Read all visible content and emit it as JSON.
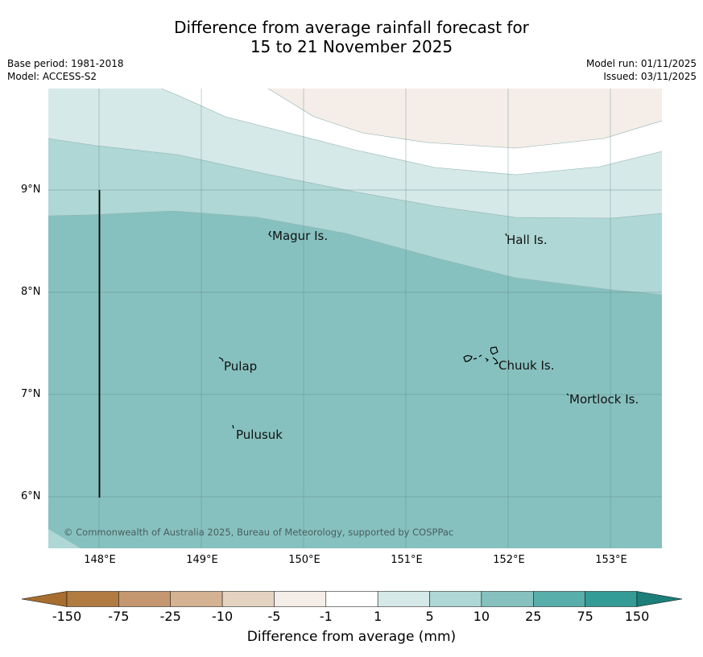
{
  "title": {
    "line1": "Difference from average rainfall forecast for",
    "line2": "15 to 21 November 2025"
  },
  "info_left": {
    "base_period": "Base period: 1981-2018",
    "model": "Model: ACCESS-S2"
  },
  "info_right": {
    "model_run": "Model run: 01/11/2025",
    "issued": "Issued: 03/11/2025"
  },
  "map": {
    "lat_labels": [
      "9°N",
      "8°N",
      "7°N",
      "6°N"
    ],
    "lon_labels": [
      "148°E",
      "149°E",
      "150°E",
      "151°E",
      "152°E",
      "153°E"
    ],
    "places": {
      "magur": "Magur Is.",
      "hall": "Hall Is.",
      "pulap": "Pulap",
      "chuuk": "Chuuk Is.",
      "mortlock": "Mortlock Is.",
      "pulusuk": "Pulusuk"
    },
    "copyright": "© Commonwealth of Australia 2025, Bureau of Meteorology, supported by COSPPac"
  },
  "colorbar": {
    "ticks": [
      "-150",
      "-75",
      "-25",
      "-10",
      "-5",
      "-1",
      "1",
      "5",
      "10",
      "25",
      "75",
      "150"
    ],
    "colors": [
      "#a86e30",
      "#b07b41",
      "#c49770",
      "#d4b292",
      "#e5d3c2",
      "#f4ede8",
      "#ffffff",
      "#d5e9e8",
      "#aed7d5",
      "#86c1bf",
      "#58aeaa",
      "#349b96",
      "#1d7f7a"
    ],
    "label": "Difference from average (mm)"
  }
}
